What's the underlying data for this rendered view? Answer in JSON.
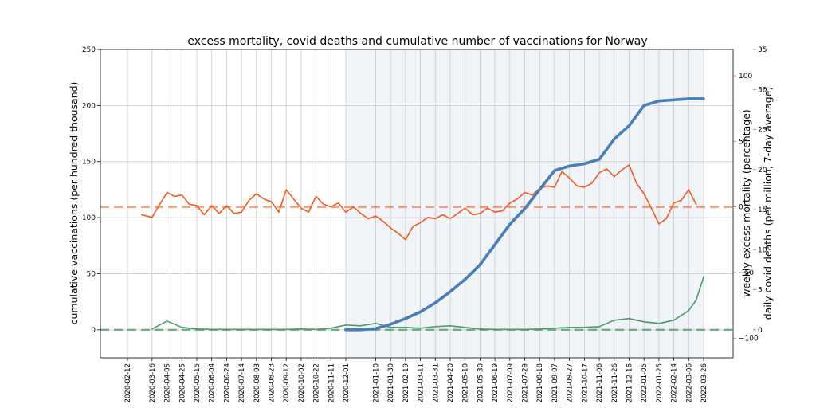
{
  "chart_data": {
    "type": "line",
    "title": "excess mortality, covid deaths and cumulative number of vaccinations for Norway",
    "colors": {
      "vaccinations": "#4a7fb5",
      "excess_mortality": "#f05a1e",
      "covid_deaths": "#4e9a68",
      "shading": "#dde7f0",
      "grid": "#c8c8c8"
    },
    "grid": true,
    "x_ticks": [
      "2020-02-12",
      "2020-03-16",
      "2020-04-05",
      "2020-04-25",
      "2020-05-15",
      "2020-06-04",
      "2020-06-24",
      "2020-07-14",
      "2020-08-03",
      "2020-08-23",
      "2020-09-12",
      "2020-10-02",
      "2020-10-22",
      "2020-11-11",
      "2020-12-01",
      "2021-01-10",
      "2021-01-30",
      "2021-02-19",
      "2021-03-11",
      "2021-03-31",
      "2021-04-20",
      "2021-05-10",
      "2021-05-30",
      "2021-06-19",
      "2021-07-09",
      "2021-07-29",
      "2021-08-18",
      "2021-09-07",
      "2021-09-27",
      "2021-10-17",
      "2021-11-06",
      "2021-11-26",
      "2021-12-16",
      "2022-01-05",
      "2022-01-25",
      "2022-02-14",
      "2022-03-06",
      "2022-03-26"
    ],
    "shaded_region": {
      "from": "2020-12-01",
      "to": "2022-03-26"
    },
    "left_axis": {
      "label": "cumulative vaccinations (per hundred thousand)",
      "range": [
        -25,
        250
      ],
      "ticks": [
        "0",
        "50",
        "100",
        "150",
        "200",
        "250"
      ]
    },
    "right_axis_excess": {
      "label": "weekly excess mortality (percentage)",
      "range": [
        -115,
        120
      ],
      "ticks": [
        "−100",
        "−50",
        "0",
        "50",
        "100"
      ],
      "reference_line": 0
    },
    "right_axis_deaths": {
      "label": "daily covid deaths (per million, 7-day average)",
      "range": [
        -3.5,
        35
      ],
      "ticks": [
        "0",
        "5",
        "10",
        "15",
        "20",
        "25",
        "30",
        "35"
      ],
      "reference_line": 0
    },
    "series": [
      {
        "key": "vaccinations",
        "axis": "left",
        "x": [
          "2020-12-01",
          "2020-12-20",
          "2021-01-10",
          "2021-01-30",
          "2021-02-19",
          "2021-03-11",
          "2021-03-31",
          "2021-04-20",
          "2021-05-10",
          "2021-05-30",
          "2021-06-19",
          "2021-07-09",
          "2021-07-29",
          "2021-08-18",
          "2021-09-07",
          "2021-09-27",
          "2021-10-17",
          "2021-11-06",
          "2021-11-26",
          "2021-12-16",
          "2022-01-05",
          "2022-01-25",
          "2022-02-14",
          "2022-03-06",
          "2022-03-26"
        ],
        "values": [
          0,
          0,
          1,
          5,
          10,
          16,
          24,
          34,
          45,
          58,
          76,
          94,
          108,
          125,
          142,
          146,
          148,
          152,
          170,
          182,
          200,
          204,
          205,
          206,
          206
        ]
      },
      {
        "key": "excess_mortality",
        "axis": "right_excess",
        "x": [
          "2020-03-02",
          "2020-03-16",
          "2020-03-23",
          "2020-04-05",
          "2020-04-15",
          "2020-04-25",
          "2020-05-05",
          "2020-05-15",
          "2020-05-25",
          "2020-06-04",
          "2020-06-14",
          "2020-06-24",
          "2020-07-04",
          "2020-07-14",
          "2020-07-24",
          "2020-08-03",
          "2020-08-13",
          "2020-08-23",
          "2020-09-02",
          "2020-09-12",
          "2020-09-22",
          "2020-10-02",
          "2020-10-12",
          "2020-10-22",
          "2020-11-01",
          "2020-11-11",
          "2020-11-21",
          "2020-12-01",
          "2020-12-11",
          "2020-12-21",
          "2020-12-31",
          "2021-01-10",
          "2021-01-20",
          "2021-01-30",
          "2021-02-09",
          "2021-02-19",
          "2021-03-01",
          "2021-03-11",
          "2021-03-21",
          "2021-03-31",
          "2021-04-10",
          "2021-04-20",
          "2021-04-30",
          "2021-05-10",
          "2021-05-20",
          "2021-05-30",
          "2021-06-09",
          "2021-06-19",
          "2021-06-29",
          "2021-07-09",
          "2021-07-19",
          "2021-07-29",
          "2021-08-08",
          "2021-08-18",
          "2021-08-28",
          "2021-09-07",
          "2021-09-17",
          "2021-09-27",
          "2021-10-07",
          "2021-10-17",
          "2021-10-27",
          "2021-11-06",
          "2021-11-16",
          "2021-11-26",
          "2021-12-06",
          "2021-12-16",
          "2021-12-26",
          "2022-01-05",
          "2022-01-15",
          "2022-01-25",
          "2022-02-04",
          "2022-02-14",
          "2022-02-24",
          "2022-03-06",
          "2022-03-16"
        ],
        "values": [
          -6,
          -8,
          -1,
          11,
          8,
          9,
          2,
          1,
          -6,
          1,
          -5,
          1,
          -5,
          -4,
          5,
          10,
          6,
          4,
          -4,
          13,
          6,
          -1,
          -4,
          8,
          2,
          0,
          3,
          -4,
          0,
          -5,
          -9,
          -7,
          -11,
          -16,
          -20,
          -25,
          -15,
          -12,
          -8,
          -9,
          -6,
          -9,
          -5,
          -1,
          -6,
          -5,
          -1,
          -4,
          -3,
          3,
          6,
          11,
          9,
          14,
          16,
          15,
          27,
          22,
          16,
          15,
          18,
          26,
          29,
          23,
          28,
          32,
          18,
          10,
          -1,
          -13,
          -9,
          3,
          5,
          13,
          2
        ]
      },
      {
        "key": "covid_deaths",
        "axis": "right_deaths",
        "x": [
          "2020-03-16",
          "2020-04-05",
          "2020-04-25",
          "2020-05-15",
          "2020-06-04",
          "2020-06-24",
          "2020-07-14",
          "2020-08-03",
          "2020-08-23",
          "2020-09-12",
          "2020-10-02",
          "2020-10-22",
          "2020-11-11",
          "2020-12-01",
          "2020-12-20",
          "2021-01-10",
          "2021-01-30",
          "2021-02-19",
          "2021-03-11",
          "2021-03-31",
          "2021-04-20",
          "2021-05-10",
          "2021-05-30",
          "2021-06-19",
          "2021-07-09",
          "2021-07-29",
          "2021-08-18",
          "2021-09-07",
          "2021-09-27",
          "2021-10-17",
          "2021-11-06",
          "2021-11-26",
          "2021-12-16",
          "2022-01-05",
          "2022-01-25",
          "2022-02-14",
          "2022-03-06",
          "2022-03-16",
          "2022-03-26"
        ],
        "values": [
          0.1,
          1.1,
          0.3,
          0.1,
          0.05,
          0.05,
          0.05,
          0.05,
          0.05,
          0.05,
          0.1,
          0.05,
          0.2,
          0.6,
          0.5,
          0.8,
          0.3,
          0.3,
          0.2,
          0.4,
          0.5,
          0.3,
          0.1,
          0.05,
          0.05,
          0.05,
          0.1,
          0.2,
          0.3,
          0.3,
          0.4,
          1.2,
          1.4,
          1.0,
          0.8,
          1.2,
          2.4,
          3.7,
          6.6
        ]
      }
    ]
  }
}
